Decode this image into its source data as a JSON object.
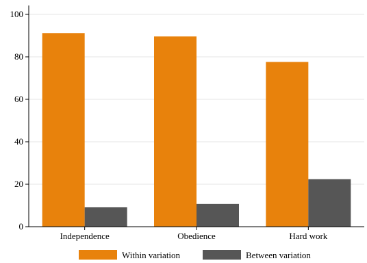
{
  "chart_data": {
    "type": "bar",
    "categories": [
      "Independence",
      "Obedience",
      "Hard work"
    ],
    "series": [
      {
        "name": "Within variation",
        "color": "#e8820c",
        "values": [
          91.2,
          89.6,
          77.6
        ]
      },
      {
        "name": "Between variation",
        "color": "#565656",
        "values": [
          9.2,
          10.7,
          22.4
        ]
      }
    ],
    "ylim": [
      0,
      100
    ],
    "yticks": [
      0,
      20,
      40,
      60,
      80,
      100
    ],
    "grid": true,
    "legend_position": "bottom",
    "title": "",
    "xlabel": "",
    "ylabel": ""
  }
}
